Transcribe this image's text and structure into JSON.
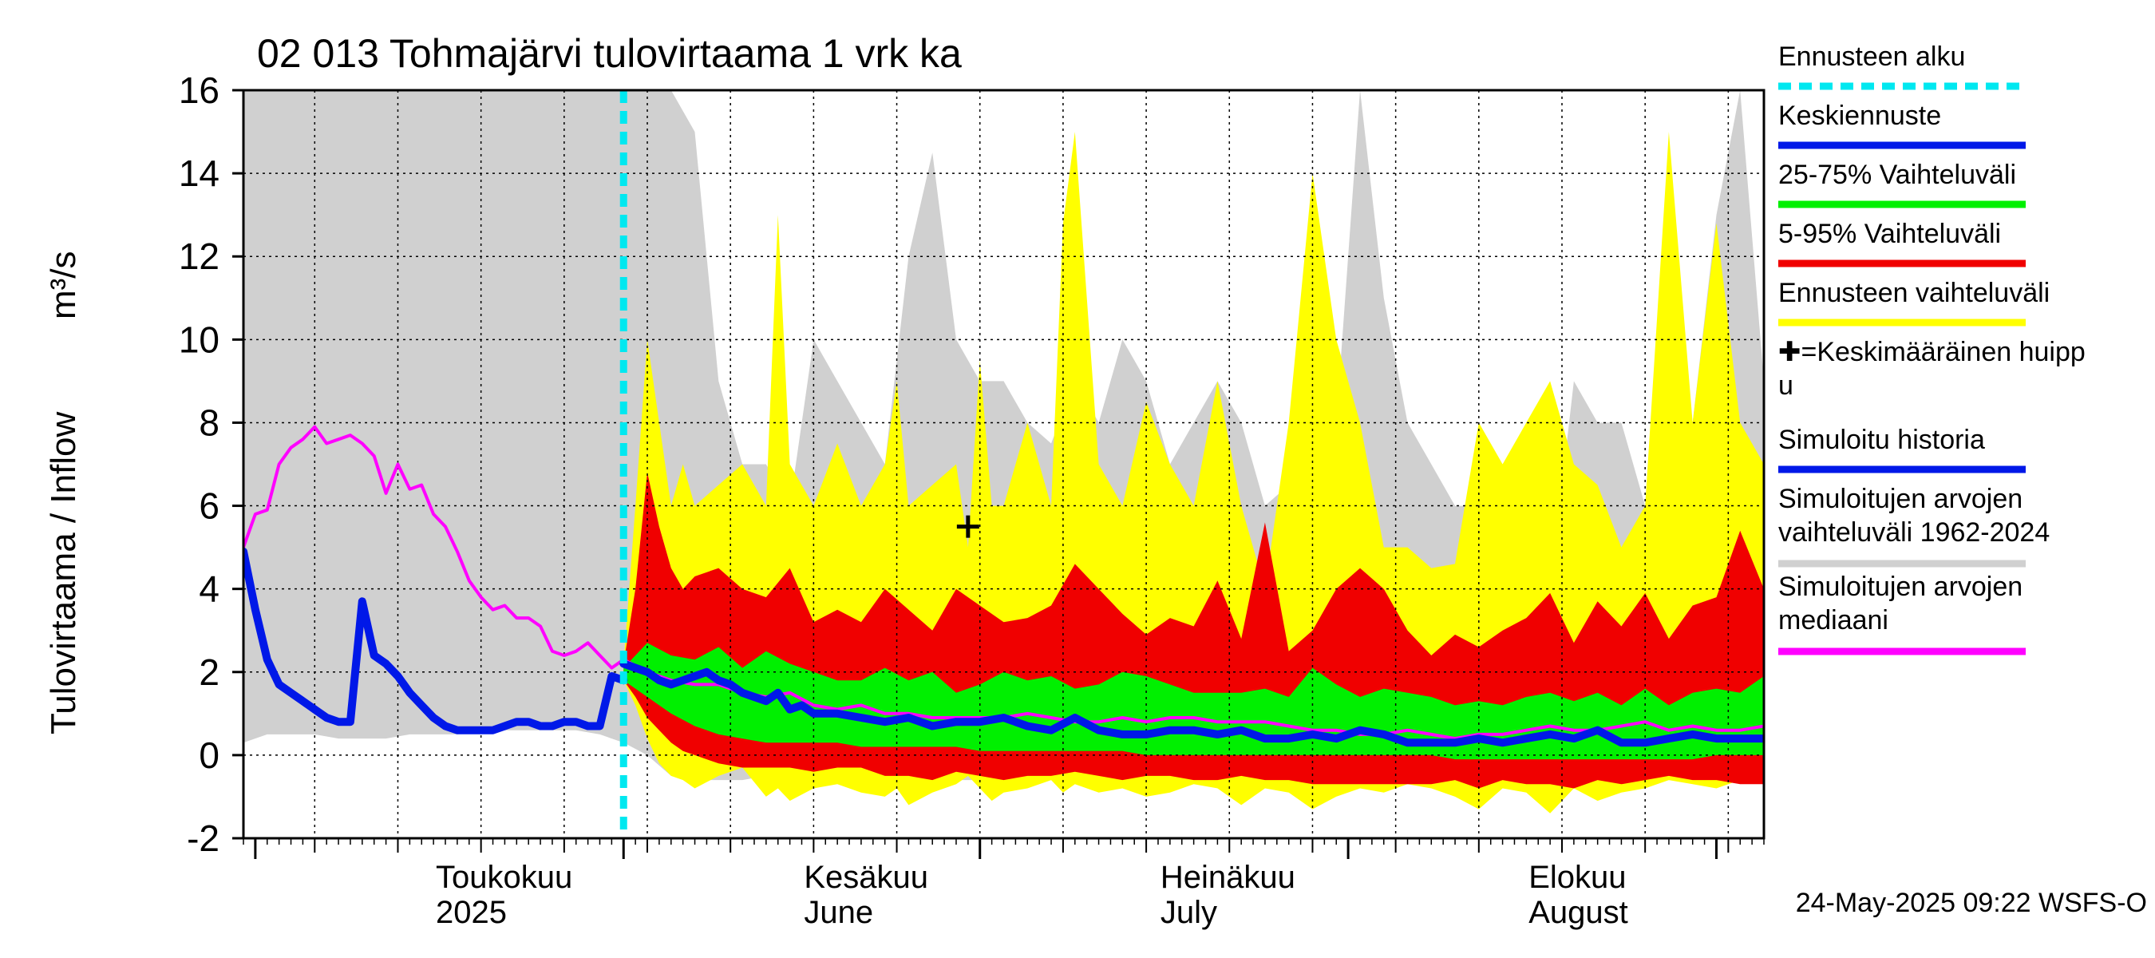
{
  "chart_data": {
    "type": "area",
    "title": "02 013 Tohmajärvi tulovirtaama 1 vrk ka",
    "ylabel_prefix": "Tulovirtaama / Inflow",
    "ylabel_unit": "m³/s",
    "ylim": [
      -2,
      16
    ],
    "y_ticks": [
      -2,
      0,
      2,
      4,
      6,
      8,
      10,
      12,
      14,
      16
    ],
    "x_range_days": [
      0,
      128
    ],
    "forecast_start_day": 32,
    "month_labels": [
      {
        "day": 17,
        "line1": "Toukokuu",
        "line2": "2025"
      },
      {
        "day": 48,
        "line1": "Kesäkuu",
        "line2": "June"
      },
      {
        "day": 78,
        "line1": "Heinäkuu",
        "line2": "July"
      },
      {
        "day": 109,
        "line1": "Elokuu",
        "line2": "August"
      }
    ],
    "month_boundaries": [
      1,
      32,
      62,
      93,
      124
    ],
    "week_lines": [
      6,
      13,
      20,
      27,
      34,
      41,
      48,
      55,
      62,
      69,
      76,
      83,
      90,
      97,
      104,
      111,
      118,
      125
    ],
    "mean_peak": {
      "day": 61,
      "value": 5.5
    },
    "historical_range": {
      "x": [
        0,
        2,
        4,
        6,
        8,
        10,
        12,
        14,
        16,
        18,
        20,
        22,
        24,
        26,
        28,
        30,
        32,
        34,
        36,
        38,
        40,
        42,
        44,
        46,
        48,
        50,
        52,
        54,
        56,
        58,
        60,
        62,
        64,
        66,
        68,
        70,
        72,
        74,
        76,
        78,
        80,
        82,
        84,
        86,
        88,
        90,
        92,
        94,
        96,
        98,
        100,
        102,
        104,
        106,
        108,
        110,
        112,
        114,
        116,
        118,
        120,
        122,
        124,
        126,
        128
      ],
      "upper": [
        16,
        16,
        16,
        16,
        16,
        16,
        16,
        16,
        16,
        16,
        16,
        16,
        16,
        16,
        16,
        16,
        16,
        16,
        16,
        15,
        9,
        7,
        7,
        6,
        10,
        9,
        8,
        7,
        12,
        14.5,
        10,
        9,
        9,
        8,
        7.5,
        9,
        8,
        10,
        9,
        7,
        8,
        9,
        8,
        6,
        6.5,
        7,
        8,
        16,
        11,
        8,
        7,
        6,
        6,
        5,
        4,
        4,
        9,
        8,
        8,
        6,
        5,
        8,
        13,
        16,
        9
      ],
      "lower": [
        0.3,
        0.5,
        0.5,
        0.5,
        0.4,
        0.4,
        0.4,
        0.5,
        0.5,
        0.5,
        0.6,
        0.6,
        0.6,
        0.6,
        0.6,
        0.5,
        0.3,
        0,
        -0.5,
        -0.6,
        -0.6,
        -0.6,
        -0.5,
        -0.6,
        -0.7,
        -0.6,
        -0.6,
        -0.6,
        -0.6,
        -0.6,
        -0.6,
        -0.6,
        -0.6,
        -0.6,
        -0.6,
        -0.6,
        -0.6,
        -0.6,
        -0.6,
        -0.6,
        -0.6,
        -0.6,
        -0.6,
        -0.6,
        -0.6,
        -0.6,
        -0.6,
        -0.6,
        -0.6,
        -0.6,
        -0.6,
        -0.6,
        -0.6,
        -0.6,
        -0.6,
        -0.6,
        -0.6,
        -0.6,
        -0.6,
        -0.6,
        -0.6,
        -0.6,
        -0.6,
        -0.6,
        -0.6
      ]
    },
    "forecast_range": {
      "x": [
        32,
        33,
        34,
        35,
        36,
        37,
        38,
        40,
        42,
        44,
        45,
        46,
        48,
        50,
        52,
        54,
        55,
        56,
        58,
        60,
        61,
        62,
        63,
        64,
        66,
        68,
        69,
        70,
        72,
        74,
        76,
        78,
        80,
        82,
        84,
        86,
        88,
        90,
        92,
        94,
        96,
        98,
        100,
        102,
        104,
        106,
        108,
        110,
        112,
        114,
        116,
        118,
        120,
        122,
        124,
        126,
        128
      ],
      "upper": [
        2.2,
        6,
        10,
        8,
        6,
        7,
        6,
        6.5,
        7,
        6,
        13,
        7,
        6,
        7.5,
        6,
        7,
        9,
        6,
        6.5,
        7,
        5,
        9.5,
        6,
        6,
        8,
        6,
        12.8,
        15,
        7,
        6,
        8.5,
        7,
        6,
        9,
        6,
        4,
        8,
        14,
        10,
        8,
        5,
        5,
        4.5,
        4.6,
        8,
        7,
        8,
        9,
        7,
        6.5,
        5,
        6,
        15,
        8,
        12.8,
        8,
        7
      ],
      "lower": [
        1.8,
        1.2,
        0.4,
        -0.2,
        -0.5,
        -0.6,
        -0.8,
        -0.5,
        -0.3,
        -1,
        -0.8,
        -1.1,
        -0.8,
        -0.7,
        -0.9,
        -1,
        -0.8,
        -1.2,
        -0.9,
        -0.7,
        -0.5,
        -0.8,
        -1.1,
        -0.9,
        -0.8,
        -0.6,
        -0.9,
        -0.7,
        -0.9,
        -0.8,
        -1,
        -0.9,
        -0.7,
        -0.8,
        -1.2,
        -0.8,
        -0.9,
        -1.3,
        -1,
        -0.8,
        -0.9,
        -0.7,
        -0.8,
        -1,
        -1.3,
        -0.8,
        -0.9,
        -1.4,
        -0.8,
        -1.1,
        -0.9,
        -0.8,
        -0.6,
        -0.7,
        -0.8,
        -0.6,
        -0.7
      ]
    },
    "p5_95": {
      "x": [
        32,
        33,
        34,
        35,
        36,
        37,
        38,
        40,
        42,
        44,
        46,
        48,
        50,
        52,
        54,
        56,
        58,
        60,
        62,
        64,
        66,
        68,
        70,
        72,
        74,
        76,
        78,
        80,
        82,
        84,
        86,
        88,
        90,
        92,
        94,
        96,
        98,
        100,
        102,
        104,
        106,
        108,
        110,
        112,
        114,
        116,
        118,
        120,
        122,
        124,
        126,
        128
      ],
      "upper": [
        2.2,
        4,
        6.8,
        5.5,
        4.5,
        4,
        4.3,
        4.5,
        4,
        3.8,
        4.5,
        3.2,
        3.5,
        3.2,
        4,
        3.5,
        3,
        4,
        3.6,
        3.2,
        3.3,
        3.6,
        4.6,
        4,
        3.4,
        2.9,
        3.3,
        3.1,
        4.2,
        2.8,
        5.6,
        2.5,
        3,
        4,
        4.5,
        4,
        3,
        2.4,
        2.9,
        2.6,
        3,
        3.3,
        3.9,
        2.7,
        3.7,
        3.1,
        3.9,
        2.8,
        3.6,
        3.8,
        5.4,
        4
      ],
      "lower": [
        1.8,
        1.4,
        0.9,
        0.6,
        0.3,
        0.1,
        0,
        -0.2,
        -0.3,
        -0.3,
        -0.3,
        -0.4,
        -0.3,
        -0.3,
        -0.5,
        -0.5,
        -0.6,
        -0.4,
        -0.5,
        -0.6,
        -0.5,
        -0.5,
        -0.4,
        -0.5,
        -0.6,
        -0.5,
        -0.5,
        -0.6,
        -0.6,
        -0.5,
        -0.6,
        -0.6,
        -0.7,
        -0.7,
        -0.7,
        -0.7,
        -0.7,
        -0.7,
        -0.6,
        -0.8,
        -0.6,
        -0.7,
        -0.7,
        -0.8,
        -0.6,
        -0.7,
        -0.6,
        -0.5,
        -0.6,
        -0.6,
        -0.7,
        -0.7
      ]
    },
    "p25_75": {
      "x": [
        32,
        34,
        36,
        38,
        40,
        42,
        44,
        46,
        48,
        50,
        52,
        54,
        56,
        58,
        60,
        62,
        64,
        66,
        68,
        70,
        72,
        74,
        76,
        78,
        80,
        82,
        84,
        86,
        88,
        90,
        92,
        94,
        96,
        98,
        100,
        102,
        104,
        106,
        108,
        110,
        112,
        114,
        116,
        118,
        120,
        122,
        124,
        126,
        128
      ],
      "upper": [
        2.1,
        2.7,
        2.4,
        2.3,
        2.6,
        2.1,
        2.5,
        2.2,
        2,
        1.8,
        1.8,
        2.1,
        1.8,
        2,
        1.5,
        1.7,
        2,
        1.8,
        1.9,
        1.6,
        1.7,
        2,
        1.9,
        1.7,
        1.5,
        1.5,
        1.5,
        1.6,
        1.4,
        2.1,
        1.7,
        1.4,
        1.6,
        1.5,
        1.4,
        1.2,
        1.3,
        1.2,
        1.4,
        1.5,
        1.3,
        1.5,
        1.2,
        1.6,
        1.2,
        1.5,
        1.6,
        1.5,
        1.9
      ],
      "lower": [
        1.8,
        1.4,
        1,
        0.7,
        0.5,
        0.4,
        0.3,
        0.3,
        0.3,
        0.3,
        0.2,
        0.2,
        0.2,
        0.2,
        0.2,
        0.1,
        0.1,
        0.1,
        0.1,
        0.1,
        0.1,
        0.1,
        0,
        0,
        0,
        0,
        0,
        0,
        0,
        0,
        0,
        0,
        0,
        0,
        0,
        -0.1,
        -0.1,
        -0.1,
        -0.1,
        -0.1,
        -0.1,
        -0.1,
        -0.1,
        -0.1,
        -0.1,
        -0.1,
        0,
        0,
        0
      ]
    },
    "simulated_history": {
      "x": [
        0,
        1,
        2,
        3,
        4,
        5,
        6,
        7,
        8,
        9,
        10,
        11,
        12,
        13,
        14,
        15,
        16,
        17,
        18,
        19,
        20,
        21,
        22,
        23,
        24,
        25,
        26,
        27,
        28,
        29,
        30,
        31,
        32
      ],
      "values": [
        4.9,
        3.5,
        2.3,
        1.7,
        1.5,
        1.3,
        1.1,
        0.9,
        0.8,
        0.8,
        3.7,
        2.4,
        2.2,
        1.9,
        1.5,
        1.2,
        0.9,
        0.7,
        0.6,
        0.6,
        0.6,
        0.6,
        0.7,
        0.8,
        0.8,
        0.7,
        0.7,
        0.8,
        0.8,
        0.7,
        0.7,
        1.9,
        1.8
      ]
    },
    "mean_forecast": {
      "x": [
        32,
        33,
        34,
        35,
        36,
        37,
        38,
        39,
        40,
        41,
        42,
        43,
        44,
        45,
        46,
        47,
        48,
        50,
        52,
        54,
        56,
        58,
        60,
        62,
        64,
        66,
        68,
        70,
        72,
        74,
        76,
        78,
        80,
        82,
        84,
        86,
        88,
        90,
        92,
        94,
        96,
        98,
        100,
        102,
        104,
        106,
        108,
        110,
        112,
        114,
        116,
        118,
        120,
        122,
        124,
        126,
        128
      ],
      "values": [
        2.2,
        2.1,
        2.0,
        1.8,
        1.7,
        1.8,
        1.9,
        2.0,
        1.8,
        1.7,
        1.5,
        1.4,
        1.3,
        1.5,
        1.1,
        1.2,
        1.0,
        1.0,
        0.9,
        0.8,
        0.9,
        0.7,
        0.8,
        0.8,
        0.9,
        0.7,
        0.6,
        0.9,
        0.6,
        0.5,
        0.5,
        0.6,
        0.6,
        0.5,
        0.6,
        0.4,
        0.4,
        0.5,
        0.4,
        0.6,
        0.5,
        0.3,
        0.3,
        0.3,
        0.4,
        0.3,
        0.4,
        0.5,
        0.4,
        0.6,
        0.3,
        0.3,
        0.4,
        0.5,
        0.4,
        0.4,
        0.4
      ]
    },
    "historical_median": {
      "x": [
        0,
        1,
        2,
        3,
        4,
        5,
        6,
        7,
        8,
        9,
        10,
        11,
        12,
        13,
        14,
        15,
        16,
        17,
        18,
        19,
        20,
        21,
        22,
        23,
        24,
        25,
        26,
        27,
        28,
        29,
        30,
        31,
        32,
        34,
        36,
        38,
        40,
        42,
        44,
        46,
        48,
        50,
        52,
        54,
        56,
        58,
        60,
        62,
        64,
        66,
        68,
        70,
        72,
        74,
        76,
        78,
        80,
        82,
        84,
        86,
        88,
        90,
        92,
        94,
        96,
        98,
        100,
        102,
        104,
        106,
        108,
        110,
        112,
        114,
        116,
        118,
        120,
        122,
        124,
        126,
        128
      ],
      "values": [
        5,
        5.8,
        5.9,
        7,
        7.4,
        7.6,
        7.9,
        7.5,
        7.6,
        7.7,
        7.5,
        7.2,
        6.3,
        7,
        6.4,
        6.5,
        5.8,
        5.5,
        4.9,
        4.2,
        3.8,
        3.5,
        3.6,
        3.3,
        3.3,
        3.1,
        2.5,
        2.4,
        2.5,
        2.7,
        2.4,
        2.1,
        2.3,
        2.0,
        1.8,
        1.7,
        1.7,
        1.5,
        1.4,
        1.5,
        1.2,
        1.1,
        1.2,
        1.0,
        1.0,
        0.9,
        0.9,
        0.9,
        0.9,
        1.0,
        0.9,
        0.8,
        0.8,
        0.9,
        0.8,
        0.9,
        0.9,
        0.8,
        0.8,
        0.8,
        0.7,
        0.6,
        0.6,
        0.5,
        0.5,
        0.6,
        0.5,
        0.4,
        0.5,
        0.5,
        0.6,
        0.7,
        0.6,
        0.6,
        0.7,
        0.8,
        0.6,
        0.7,
        0.6,
        0.6,
        0.7
      ]
    },
    "legend": [
      {
        "label": "Ennusteen alku",
        "color": "#00e8f0",
        "style": "dashed"
      },
      {
        "label": "Keskiennuste",
        "color": "#0018e8",
        "style": "solid"
      },
      {
        "label": "25-75% Vaihteluväli",
        "color": "#00f000",
        "style": "solid"
      },
      {
        "label": "5-95% Vaihteluväli",
        "color": "#f00000",
        "style": "solid"
      },
      {
        "label": "Ennusteen vaihteluväli",
        "color": "#ffff00",
        "style": "solid"
      },
      {
        "label": "✚=Keskimääräinen huipp",
        "label2": "u",
        "color": "#000000",
        "style": "marker"
      },
      {
        "label": "Simuloitu historia",
        "color": "#0018e8",
        "style": "solid"
      },
      {
        "label": "Simuloitujen arvojen",
        "label2": "vaihteluväli 1962-2024",
        "color": "#d0d0d0",
        "style": "solid"
      },
      {
        "label": "Simuloitujen arvojen",
        "label2": "mediaani",
        "color": "#ff00ff",
        "style": "solid"
      }
    ],
    "timestamp": "24-May-2025 09:22 WSFS-O"
  }
}
